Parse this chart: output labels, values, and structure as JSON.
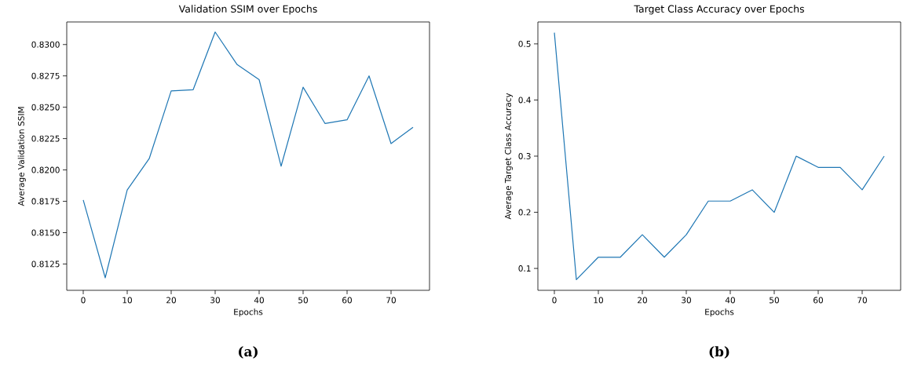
{
  "chart_data": [
    {
      "type": "line",
      "title": "Validation SSIM over Epochs",
      "xlabel": "Epochs",
      "ylabel": "Average Validation SSIM",
      "annotations": [
        "(a)"
      ],
      "x": [
        0,
        5,
        10,
        15,
        20,
        25,
        30,
        35,
        40,
        45,
        50,
        55,
        60,
        65,
        70,
        75
      ],
      "series": [
        {
          "color": "#1f77b4",
          "values": [
            0.8176,
            0.8114,
            0.8184,
            0.8209,
            0.8263,
            0.8264,
            0.831,
            0.8284,
            0.8272,
            0.8203,
            0.8266,
            0.8237,
            0.824,
            0.8275,
            0.8221,
            0.8234
          ]
        }
      ],
      "xlim": [
        -3.75,
        78.75
      ],
      "ylim": [
        0.8104,
        0.8318
      ],
      "xticks": [
        0,
        10,
        20,
        30,
        40,
        50,
        60,
        70
      ],
      "yticks": [
        {
          "value": 0.8125,
          "label": "0.8125"
        },
        {
          "value": 0.815,
          "label": "0.8150"
        },
        {
          "value": 0.8175,
          "label": "0.8175"
        },
        {
          "value": 0.82,
          "label": "0.8200"
        },
        {
          "value": 0.8225,
          "label": "0.8225"
        },
        {
          "value": 0.825,
          "label": "0.8250"
        },
        {
          "value": 0.8275,
          "label": "0.8275"
        },
        {
          "value": 0.83,
          "label": "0.8300"
        }
      ],
      "grid": false,
      "marker": "none",
      "line_style": "solid"
    },
    {
      "type": "line",
      "title": "Target Class Accuracy over Epochs",
      "xlabel": "Epochs",
      "ylabel": "Average Target Class Accuracy",
      "annotations": [
        "(b)"
      ],
      "x": [
        0,
        5,
        10,
        15,
        20,
        25,
        30,
        35,
        40,
        45,
        50,
        55,
        60,
        65,
        70,
        75
      ],
      "series": [
        {
          "color": "#1f77b4",
          "values": [
            0.52,
            0.08,
            0.12,
            0.12,
            0.16,
            0.12,
            0.16,
            0.22,
            0.22,
            0.24,
            0.2,
            0.3,
            0.28,
            0.28,
            0.24,
            0.3
          ]
        }
      ],
      "xlim": [
        -3.75,
        78.75
      ],
      "ylim": [
        0.061,
        0.539
      ],
      "xticks": [
        0,
        10,
        20,
        30,
        40,
        50,
        60,
        70
      ],
      "yticks": [
        0.1,
        0.2,
        0.3,
        0.4,
        0.5
      ],
      "grid": false,
      "marker": "none",
      "line_style": "solid"
    }
  ]
}
